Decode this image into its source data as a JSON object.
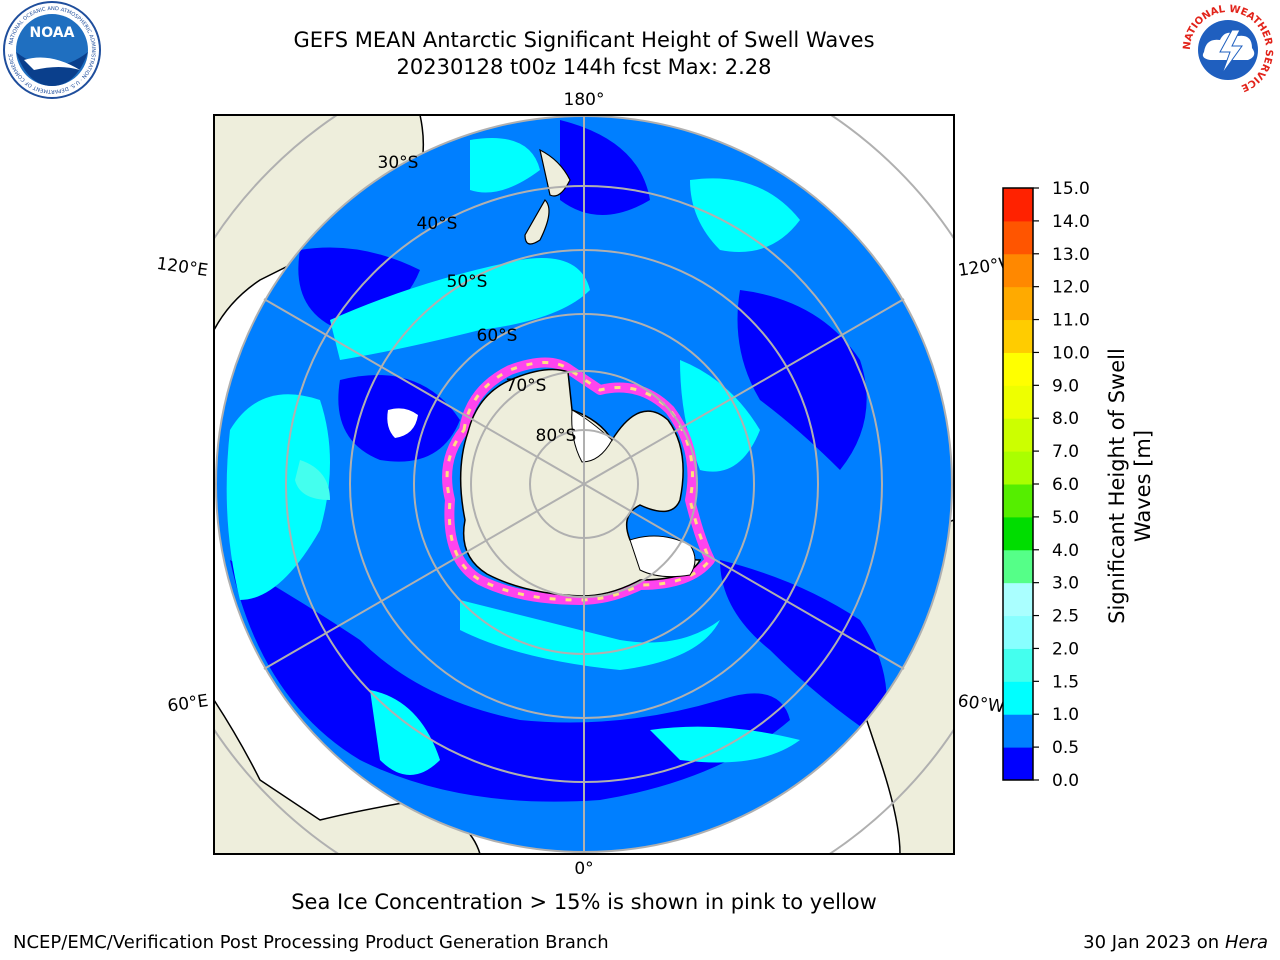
{
  "header": {
    "title_line1": "GEFS MEAN Antarctic Significant Height of Swell Waves",
    "title_line2": "20230128 t00z 144h fcst   Max: 2.28"
  },
  "logos": {
    "left": "NOAA",
    "left_ring_text": "NATIONAL OCEANIC AND ATMOSPHERIC ADMINISTRATION · U.S. DEPARTMENT OF COMMERCE",
    "right_ring_text": "NATIONAL WEATHER SERVICE"
  },
  "map": {
    "projection": "south-polar-stereographic",
    "lon_labels": {
      "top": "180°",
      "bottom": "0°",
      "left_upper": "120°E",
      "left_lower": "60°E",
      "right_upper": "120°W",
      "right_lower": "60°W"
    },
    "lat_labels": [
      "30°S",
      "40°S",
      "50°S",
      "60°S",
      "70°S",
      "80°S"
    ],
    "colors": {
      "land": "#eeeedc",
      "ice": "#ffffff",
      "sea_ice_edge": [
        "#ff44ee",
        "#ffe080"
      ],
      "grid": "#b0b0b0"
    }
  },
  "colorbar": {
    "label": "Significant Height of Swell Waves [m]",
    "label_line1": "Significant Height of Swell",
    "label_line2": "Waves [m]",
    "ticks": [
      "0.0",
      "0.5",
      "1.0",
      "1.5",
      "2.0",
      "2.5",
      "3.0",
      "4.0",
      "5.0",
      "6.0",
      "7.0",
      "8.0",
      "9.0",
      "10.0",
      "11.0",
      "12.0",
      "13.0",
      "14.0",
      "15.0"
    ],
    "colors": [
      "#0000ff",
      "#007fff",
      "#00ffff",
      "#44ffee",
      "#88ffff",
      "#aaffff",
      "#55ff88",
      "#00dd00",
      "#55ee00",
      "#aaff00",
      "#ccff00",
      "#eeff00",
      "#ffff00",
      "#ffcc00",
      "#ffaa00",
      "#ff8800",
      "#ff5500",
      "#ff2200"
    ]
  },
  "note": "Sea Ice Concentration > 15% is shown in pink to yellow",
  "footer": {
    "left": "NCEP/EMC/Verification Post Processing Product Generation Branch",
    "right_date": "30 Jan 2023 on ",
    "right_host": "Hera"
  }
}
